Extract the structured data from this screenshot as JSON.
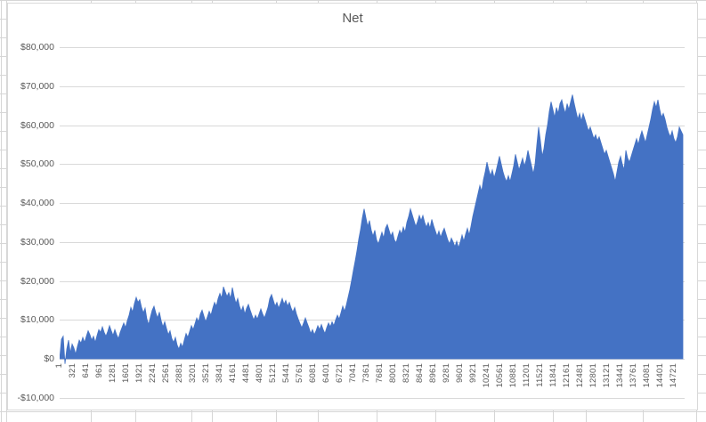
{
  "chart": {
    "title": "Net",
    "colors": {
      "area": "#4472C4",
      "gridline": "#d9d9d9",
      "axis_text": "#595959",
      "chart_border": "#d9d9d9",
      "sheet_gridline": "#d6d6d6"
    },
    "y_axis": {
      "labels": [
        "$80,000",
        "$70,000",
        "$60,000",
        "$50,000",
        "$40,000",
        "$30,000",
        "$20,000",
        "$10,000",
        "$0",
        "-$10,000"
      ]
    },
    "x_axis": {
      "labels": [
        "1",
        "321",
        "641",
        "961",
        "1281",
        "1601",
        "1921",
        "2241",
        "2561",
        "2881",
        "3201",
        "3521",
        "3841",
        "4161",
        "4481",
        "4801",
        "5121",
        "5441",
        "5761",
        "6081",
        "6401",
        "6721",
        "7041",
        "7361",
        "7681",
        "8001",
        "8321",
        "8641",
        "8961",
        "9281",
        "9601",
        "9921",
        "10241",
        "10561",
        "10881",
        "11201",
        "11521",
        "11841",
        "12161",
        "12481",
        "12801",
        "13121",
        "13441",
        "13761",
        "14081",
        "14401",
        "14721"
      ]
    }
  },
  "chart_data": {
    "type": "area",
    "title": "Net",
    "xlabel": "",
    "ylabel": "",
    "ylim": [
      -10000,
      80000
    ],
    "ytick_step": 10000,
    "x_range": [
      1,
      15000
    ],
    "xtick_start": 1,
    "xtick_step": 320,
    "grid": true,
    "legend": false,
    "series_name": "Net",
    "values_unit": "USD thousands, sampled uniformly over x_range",
    "values": [
      0,
      5.0,
      5.8,
      -1.3,
      2.5,
      4.8,
      1.5,
      3.8,
      2.8,
      1.2,
      3.2,
      4.8,
      4.0,
      5.5,
      4.2,
      5.8,
      7.2,
      6.2,
      4.8,
      5.8,
      4.2,
      6.0,
      7.5,
      6.8,
      8.2,
      6.8,
      5.8,
      7.0,
      8.5,
      7.2,
      6.0,
      7.5,
      6.2,
      5.2,
      6.8,
      8.0,
      9.2,
      8.0,
      9.8,
      11.2,
      13.2,
      12.0,
      14.2,
      15.8,
      14.5,
      15.2,
      13.2,
      11.8,
      13.0,
      10.2,
      8.8,
      10.8,
      12.5,
      13.5,
      11.8,
      10.5,
      12.0,
      9.8,
      8.2,
      9.5,
      7.8,
      6.2,
      7.2,
      5.2,
      4.2,
      5.5,
      3.5,
      2.5,
      4.0,
      3.0,
      4.8,
      6.5,
      5.5,
      7.0,
      8.5,
      7.5,
      9.0,
      10.5,
      9.5,
      11.5,
      12.5,
      11.0,
      9.5,
      10.8,
      12.2,
      11.2,
      13.0,
      14.5,
      13.5,
      15.5,
      16.8,
      15.6,
      18.5,
      17.2,
      16.0,
      17.0,
      15.5,
      18.3,
      16.0,
      14.2,
      15.5,
      13.5,
      12.2,
      13.5,
      11.5,
      13.0,
      14.0,
      12.5,
      11.2,
      10.0,
      11.2,
      10.2,
      11.5,
      12.8,
      11.5,
      10.5,
      11.8,
      13.2,
      15.5,
      16.5,
      15.0,
      13.5,
      14.5,
      13.0,
      14.2,
      15.5,
      14.0,
      15.0,
      13.5,
      14.5,
      13.0,
      12.0,
      13.2,
      11.5,
      10.2,
      9.0,
      8.0,
      9.2,
      10.5,
      9.2,
      8.0,
      6.5,
      7.5,
      6.2,
      7.2,
      8.5,
      7.5,
      8.8,
      7.5,
      6.5,
      8.0,
      9.2,
      8.2,
      9.5,
      8.5,
      10.0,
      11.2,
      10.2,
      11.8,
      13.5,
      12.2,
      13.8,
      15.8,
      17.8,
      20.2,
      22.8,
      25.2,
      27.8,
      30.8,
      33.2,
      36.2,
      38.5,
      36.2,
      34.0,
      35.5,
      33.0,
      31.5,
      33.0,
      30.5,
      29.5,
      31.0,
      32.5,
      31.0,
      33.5,
      34.5,
      33.0,
      31.5,
      32.5,
      30.5,
      29.8,
      31.5,
      33.0,
      32.0,
      33.8,
      32.5,
      35.0,
      36.5,
      38.5,
      37.0,
      35.5,
      34.0,
      35.2,
      36.8,
      35.5,
      36.8,
      35.0,
      33.8,
      35.0,
      33.5,
      35.8,
      34.2,
      32.8,
      31.5,
      32.8,
      31.2,
      32.5,
      33.5,
      32.0,
      30.5,
      29.5,
      31.0,
      30.0,
      28.8,
      30.2,
      28.5,
      30.0,
      31.8,
      30.2,
      32.0,
      33.5,
      31.8,
      34.0,
      36.5,
      38.5,
      40.5,
      42.5,
      44.5,
      43.0,
      46.0,
      48.0,
      50.5,
      48.5,
      47.0,
      48.5,
      46.5,
      48.0,
      50.0,
      52.0,
      50.0,
      48.0,
      46.5,
      45.5,
      47.0,
      45.5,
      47.5,
      49.5,
      52.5,
      50.5,
      48.5,
      50.0,
      51.5,
      49.5,
      51.0,
      53.5,
      51.5,
      49.5,
      47.5,
      50.0,
      55.0,
      59.5,
      56.0,
      52.0,
      54.0,
      57.5,
      60.0,
      63.5,
      66.0,
      64.0,
      62.0,
      64.5,
      63.0,
      65.5,
      66.5,
      64.5,
      63.0,
      65.5,
      64.0,
      66.0,
      67.8,
      65.5,
      63.5,
      61.5,
      63.0,
      61.0,
      63.0,
      61.5,
      60.0,
      58.5,
      59.5,
      58.0,
      56.5,
      57.5,
      56.0,
      57.0,
      55.5,
      54.0,
      52.5,
      53.5,
      52.0,
      50.5,
      49.0,
      47.5,
      45.5,
      48.0,
      50.5,
      52.0,
      50.0,
      48.5,
      53.5,
      51.5,
      50.5,
      52.0,
      53.5,
      55.0,
      56.5,
      55.0,
      57.0,
      58.5,
      57.0,
      55.5,
      57.5,
      59.5,
      61.5,
      64.0,
      66.0,
      64.5,
      66.5,
      64.0,
      62.0,
      63.0,
      61.5,
      59.5,
      58.0,
      57.0,
      58.5,
      56.5,
      55.5,
      57.0,
      59.5,
      58.5,
      57.5
    ]
  }
}
